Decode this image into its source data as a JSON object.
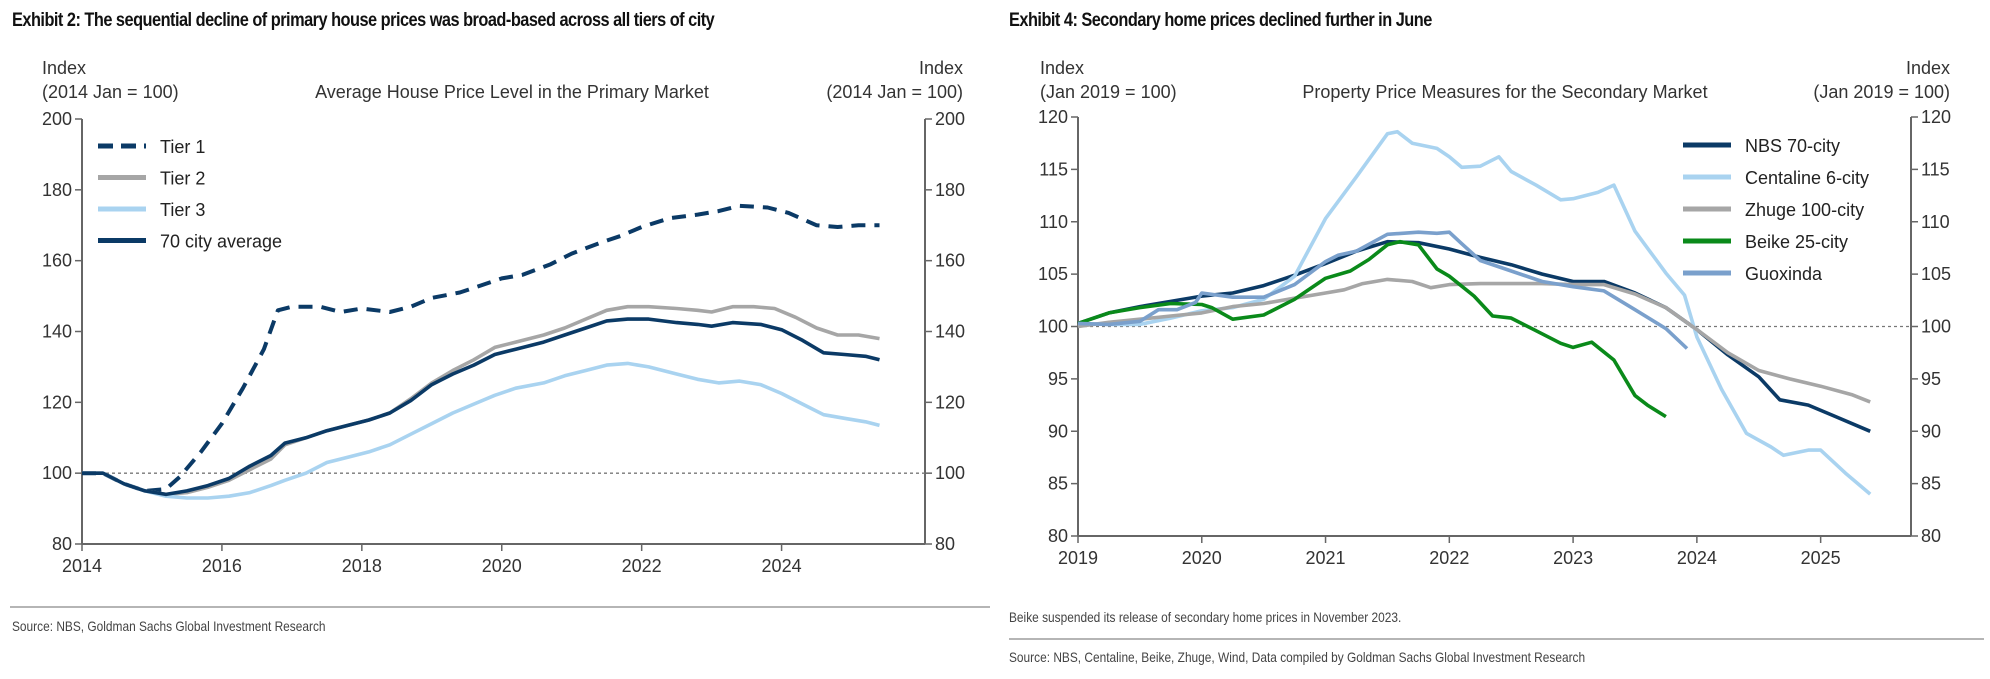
{
  "exhibits": [
    {
      "title": "Exhibit 2: The sequential decline of primary house prices was broad-based across all tiers of city",
      "source": "Source: NBS, Goldman Sachs Global Investment Research"
    },
    {
      "title": "Exhibit 4: Secondary home prices declined further in June",
      "note": "Beike suspended its release of secondary home prices in November 2023.",
      "source": "Source: NBS, Centaline, Beike, Zhuge, Wind, Data compiled by Goldman Sachs Global Investment Research"
    }
  ],
  "chart_data": [
    {
      "type": "line",
      "title": "Average House Price Level in the Primary Market",
      "ylabel_left": [
        "Index",
        "(2014 Jan = 100)"
      ],
      "ylabel_right": [
        "Index",
        "(2014 Jan = 100)"
      ],
      "xlabel": "",
      "xlim": [
        2014,
        2026.05
      ],
      "ylim": [
        80,
        200
      ],
      "yticks": [
        80,
        100,
        120,
        140,
        160,
        180,
        200
      ],
      "xticks": [
        2014,
        2016,
        2018,
        2020,
        2022,
        2024
      ],
      "reference_line": 100,
      "grid": false,
      "legend_position": "top-left",
      "series": [
        {
          "name": "Tier 1",
          "color": "#0b3a66",
          "style": "dashed",
          "x": [
            2014.0,
            2014.3,
            2014.6,
            2014.9,
            2015.2,
            2015.4,
            2015.7,
            2016.0,
            2016.3,
            2016.6,
            2016.8,
            2017.0,
            2017.4,
            2017.7,
            2018.0,
            2018.4,
            2018.7,
            2019.0,
            2019.4,
            2019.7,
            2020.0,
            2020.3,
            2020.7,
            2021.0,
            2021.4,
            2021.7,
            2022.0,
            2022.4,
            2022.8,
            2023.1,
            2023.4,
            2023.8,
            2024.1,
            2024.5,
            2024.8,
            2025.1,
            2025.4
          ],
          "y": [
            100,
            100,
            97,
            95,
            95.5,
            99,
            106,
            114,
            124,
            135,
            146,
            147,
            147,
            145.5,
            146.5,
            145.5,
            147,
            149.5,
            151,
            153,
            155,
            156,
            159,
            162,
            165,
            167,
            169.5,
            172,
            173,
            174,
            175.5,
            175,
            173.5,
            170,
            169.5,
            170,
            170
          ]
        },
        {
          "name": "Tier 2",
          "color": "#a6a6a6",
          "style": "solid",
          "x": [
            2014.0,
            2014.3,
            2014.6,
            2014.9,
            2015.2,
            2015.5,
            2015.8,
            2016.1,
            2016.4,
            2016.7,
            2016.9,
            2017.2,
            2017.5,
            2017.8,
            2018.1,
            2018.4,
            2018.7,
            2019.0,
            2019.3,
            2019.6,
            2019.9,
            2020.2,
            2020.6,
            2020.9,
            2021.2,
            2021.5,
            2021.8,
            2022.1,
            2022.5,
            2022.8,
            2023.0,
            2023.3,
            2023.6,
            2023.9,
            2024.2,
            2024.5,
            2024.8,
            2025.1,
            2025.4
          ],
          "y": [
            100,
            100,
            97,
            95,
            94,
            94.5,
            96,
            98,
            101,
            104,
            108,
            110,
            112,
            113.5,
            115,
            117,
            121,
            125.5,
            129,
            132,
            135.5,
            137,
            139,
            141,
            143.5,
            146,
            147,
            147,
            146.5,
            146,
            145.5,
            147,
            147,
            146.5,
            144,
            141,
            139,
            139,
            138
          ]
        },
        {
          "name": "Tier 3",
          "color": "#a9d3f0",
          "style": "solid",
          "x": [
            2014.0,
            2014.3,
            2014.6,
            2014.9,
            2015.2,
            2015.5,
            2015.8,
            2016.1,
            2016.4,
            2016.7,
            2016.9,
            2017.2,
            2017.5,
            2017.8,
            2018.1,
            2018.4,
            2018.7,
            2019.0,
            2019.3,
            2019.6,
            2019.9,
            2020.2,
            2020.6,
            2020.9,
            2021.2,
            2021.5,
            2021.8,
            2022.1,
            2022.5,
            2022.8,
            2023.1,
            2023.4,
            2023.7,
            2024.0,
            2024.3,
            2024.6,
            2024.9,
            2025.2,
            2025.4
          ],
          "y": [
            100,
            100,
            97,
            95,
            93.5,
            93,
            93,
            93.5,
            94.5,
            96.5,
            98,
            100,
            103,
            104.5,
            106,
            108,
            111,
            114,
            117,
            119.5,
            122,
            124,
            125.5,
            127.5,
            129,
            130.5,
            131,
            130,
            128,
            126.5,
            125.5,
            126,
            125,
            122.5,
            119.5,
            116.5,
            115.5,
            114.5,
            113.5
          ]
        },
        {
          "name": "70 city average",
          "color": "#0b3a66",
          "style": "solid",
          "x": [
            2014.0,
            2014.3,
            2014.6,
            2014.9,
            2015.2,
            2015.5,
            2015.8,
            2016.1,
            2016.4,
            2016.7,
            2016.9,
            2017.2,
            2017.5,
            2017.8,
            2018.1,
            2018.4,
            2018.7,
            2019.0,
            2019.3,
            2019.6,
            2019.9,
            2020.2,
            2020.6,
            2020.9,
            2021.2,
            2021.5,
            2021.8,
            2022.1,
            2022.5,
            2022.8,
            2023.0,
            2023.3,
            2023.7,
            2024.0,
            2024.3,
            2024.6,
            2024.9,
            2025.2,
            2025.4
          ],
          "y": [
            100,
            100,
            97,
            95,
            94,
            95,
            96.5,
            98.5,
            102,
            105,
            108.5,
            110,
            112,
            113.5,
            115,
            117,
            120.5,
            125,
            128,
            130.5,
            133.5,
            135,
            137,
            139,
            141,
            143,
            143.5,
            143.5,
            142.5,
            142,
            141.5,
            142.5,
            142,
            140.5,
            137.5,
            134,
            133.5,
            133,
            132
          ]
        }
      ]
    },
    {
      "type": "line",
      "title": "Property Price Measures for the Secondary Market",
      "ylabel_left": [
        "Index",
        "(Jan 2019 = 100)"
      ],
      "ylabel_right": [
        "Index",
        "(Jan 2019 = 100)"
      ],
      "xlabel": "",
      "xlim": [
        2019,
        2025.73
      ],
      "ylim": [
        80,
        120
      ],
      "yticks": [
        80,
        85,
        90,
        95,
        100,
        105,
        110,
        115,
        120
      ],
      "xticks": [
        2019,
        2020,
        2021,
        2022,
        2023,
        2024,
        2025
      ],
      "reference_line": 100,
      "grid": false,
      "legend_position": "top-right",
      "series": [
        {
          "name": "NBS 70-city",
          "color": "#0b3a66",
          "x": [
            2019.0,
            2019.25,
            2019.5,
            2019.75,
            2020.0,
            2020.25,
            2020.5,
            2020.75,
            2021.0,
            2021.25,
            2021.5,
            2021.75,
            2022.0,
            2022.25,
            2022.5,
            2022.75,
            2023.0,
            2023.25,
            2023.5,
            2023.75,
            2024.0,
            2024.25,
            2024.5,
            2024.67,
            2024.9,
            2025.1,
            2025.4
          ],
          "y": [
            100.3,
            101.3,
            101.9,
            102.4,
            102.9,
            103.2,
            103.9,
            104.9,
            106,
            107.2,
            108.1,
            108,
            107.4,
            106.6,
            105.9,
            105,
            104.3,
            104.3,
            103.2,
            101.8,
            99.7,
            97.3,
            95.2,
            93,
            92.5,
            91.5,
            90
          ]
        },
        {
          "name": "Centaline 6-city",
          "color": "#a9d3f0",
          "x": [
            2019.0,
            2019.25,
            2019.5,
            2019.75,
            2020.0,
            2020.25,
            2020.5,
            2020.75,
            2021.0,
            2021.25,
            2021.5,
            2021.58,
            2021.7,
            2021.9,
            2022.0,
            2022.1,
            2022.25,
            2022.4,
            2022.5,
            2022.7,
            2022.9,
            2023.0,
            2023.2,
            2023.33,
            2023.5,
            2023.75,
            2023.9,
            2024.0,
            2024.2,
            2024.4,
            2024.6,
            2024.7,
            2024.9,
            2025.0,
            2025.2,
            2025.4
          ],
          "y": [
            100.3,
            100.2,
            100.2,
            100.8,
            101.5,
            101.8,
            102.6,
            104.8,
            110.3,
            114.3,
            118.4,
            118.6,
            117.5,
            117,
            116.2,
            115.2,
            115.3,
            116.2,
            114.8,
            113.5,
            112.1,
            112.2,
            112.8,
            113.5,
            109.1,
            105.1,
            103,
            99,
            94,
            89.8,
            88.5,
            87.7,
            88.2,
            88.2,
            86,
            84
          ]
        },
        {
          "name": "Zhuge 100-city",
          "color": "#a6a6a6",
          "x": [
            2019.0,
            2019.25,
            2019.5,
            2019.75,
            2020.0,
            2020.25,
            2020.5,
            2020.75,
            2021.0,
            2021.15,
            2021.3,
            2021.5,
            2021.7,
            2021.85,
            2022.0,
            2022.25,
            2022.5,
            2022.75,
            2023.0,
            2023.25,
            2023.5,
            2023.75,
            2024.0,
            2024.25,
            2024.5,
            2024.75,
            2025.0,
            2025.25,
            2025.4
          ],
          "y": [
            100,
            100.4,
            100.7,
            101,
            101.3,
            101.9,
            102.2,
            102.7,
            103.2,
            103.5,
            104.1,
            104.5,
            104.3,
            103.7,
            104,
            104.1,
            104.1,
            104.1,
            104,
            104,
            103.1,
            101.8,
            99.7,
            97.5,
            95.8,
            95,
            94.3,
            93.5,
            92.8
          ]
        },
        {
          "name": "Beike 25-city",
          "color": "#0a8a1a",
          "x": [
            2019.0,
            2019.25,
            2019.5,
            2019.75,
            2020.0,
            2020.08,
            2020.25,
            2020.5,
            2020.75,
            2021.0,
            2021.2,
            2021.35,
            2021.5,
            2021.6,
            2021.75,
            2021.9,
            2022.0,
            2022.2,
            2022.35,
            2022.5,
            2022.7,
            2022.9,
            2023.0,
            2023.15,
            2023.33,
            2023.5,
            2023.6,
            2023.75
          ],
          "y": [
            100.3,
            101.3,
            101.8,
            102.2,
            102.1,
            101.8,
            100.7,
            101.1,
            102.6,
            104.6,
            105.3,
            106.4,
            107.8,
            108.1,
            107.8,
            105.5,
            104.8,
            102.9,
            101,
            100.8,
            99.6,
            98.4,
            98,
            98.5,
            96.8,
            93.4,
            92.5,
            91.4
          ]
        },
        {
          "name": "Guoxinda",
          "color": "#7aa0cc",
          "x": [
            2019.0,
            2019.25,
            2019.5,
            2019.65,
            2019.8,
            2019.95,
            2020.0,
            2020.25,
            2020.5,
            2020.75,
            2021.0,
            2021.1,
            2021.25,
            2021.5,
            2021.75,
            2021.9,
            2022.0,
            2022.1,
            2022.25,
            2022.5,
            2022.75,
            2023.0,
            2023.25,
            2023.5,
            2023.75,
            2023.92
          ],
          "y": [
            100.3,
            100.2,
            100.5,
            101.6,
            101.6,
            102.3,
            103.2,
            102.8,
            102.8,
            104,
            106.2,
            106.8,
            107.2,
            108.8,
            109,
            108.9,
            109,
            107.9,
            106.3,
            105.3,
            104.3,
            103.8,
            103.4,
            101.6,
            99.8,
            97.9
          ]
        }
      ]
    }
  ]
}
